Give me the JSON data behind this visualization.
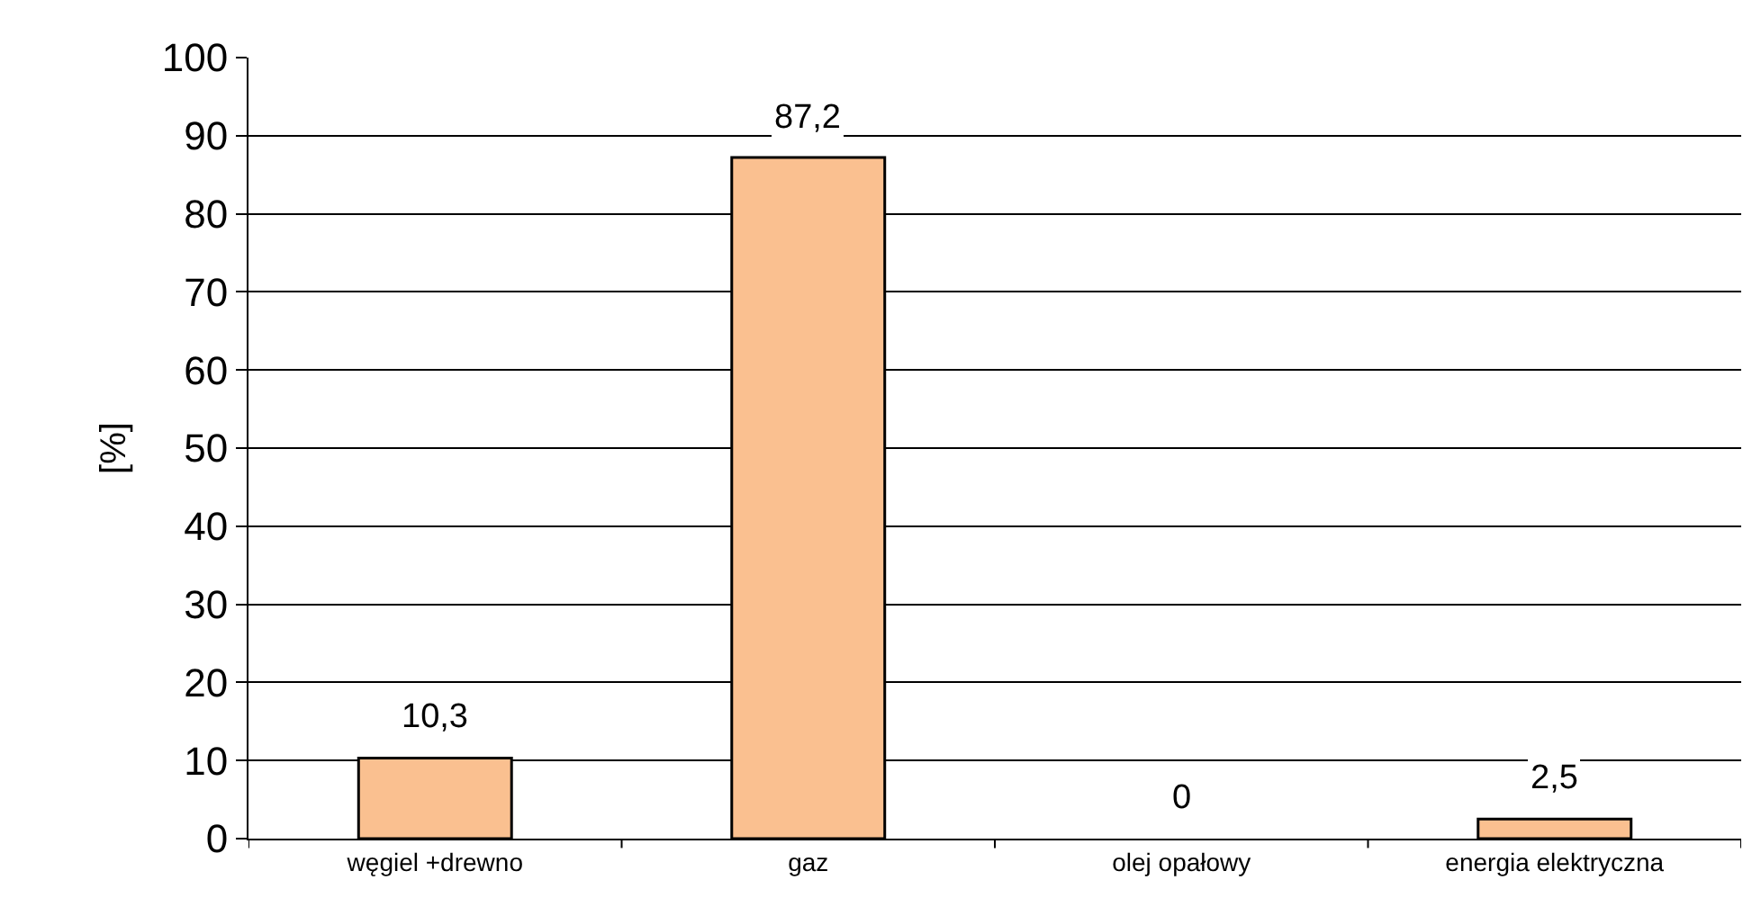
{
  "chart_data": {
    "type": "bar",
    "ylabel": "[%]",
    "categories": [
      "węgiel +drewno",
      "gaz",
      "olej opałowy",
      "energia elektryczna"
    ],
    "values": [
      10.3,
      87.2,
      0,
      2.5
    ],
    "value_labels": [
      "10,3",
      "87,2",
      "0",
      "2,5"
    ],
    "color": "#fac090",
    "ylim": [
      0,
      100
    ],
    "yticks": [
      0,
      10,
      20,
      30,
      40,
      50,
      60,
      70,
      80,
      90,
      100
    ],
    "grid": "y"
  }
}
